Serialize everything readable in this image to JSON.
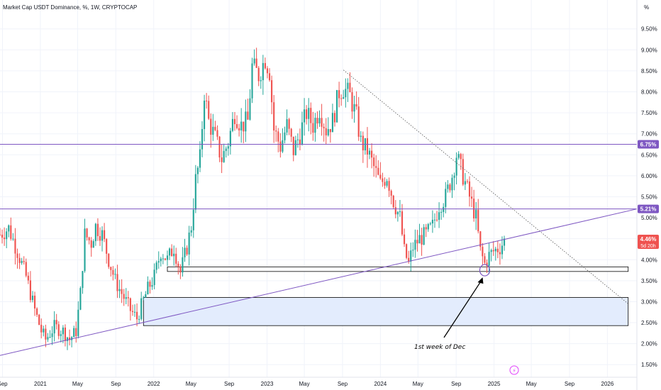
{
  "header": {
    "title": "Market Cap USDT Dominance, %, 1W, CRYPTOCAP",
    "unit": "%"
  },
  "chart_data": {
    "type": "candlestick",
    "title": "Market Cap USDT Dominance, %, 1W, CRYPTOCAP",
    "y_unit": "%",
    "ylim": [
      1.2,
      9.85
    ],
    "x_range": [
      "2020-08-24",
      "2026-04-06"
    ],
    "y_ticks": [
      "9.50%",
      "9.00%",
      "8.50%",
      "8.00%",
      "7.50%",
      "7.00%",
      "6.50%",
      "6.00%",
      "5.50%",
      "5.00%",
      "4.50%",
      "4.00%",
      "3.50%",
      "3.00%",
      "2.50%",
      "2.00%",
      "1.50%"
    ],
    "x_ticks": [
      {
        "date": "2020-09-01",
        "label": "Sep"
      },
      {
        "date": "2021-01-01",
        "label": "2021"
      },
      {
        "date": "2021-05-01",
        "label": "May"
      },
      {
        "date": "2021-09-01",
        "label": "Sep"
      },
      {
        "date": "2022-01-01",
        "label": "2022"
      },
      {
        "date": "2022-05-01",
        "label": "May"
      },
      {
        "date": "2022-09-01",
        "label": "Sep"
      },
      {
        "date": "2023-01-01",
        "label": "2023"
      },
      {
        "date": "2023-05-01",
        "label": "May"
      },
      {
        "date": "2023-09-01",
        "label": "Sep"
      },
      {
        "date": "2024-01-01",
        "label": "2024"
      },
      {
        "date": "2024-05-01",
        "label": "May"
      },
      {
        "date": "2024-09-01",
        "label": "Sep"
      },
      {
        "date": "2025-01-01",
        "label": "2025"
      },
      {
        "date": "2025-05-01",
        "label": "May"
      },
      {
        "date": "2025-09-01",
        "label": "Sep"
      },
      {
        "date": "2026-01-01",
        "label": "2026"
      }
    ],
    "price_path": [
      [
        "2020-08-24",
        4.6
      ],
      [
        "2020-09-21",
        4.75
      ],
      [
        "2020-10-19",
        4.2
      ],
      [
        "2020-11-16",
        3.6
      ],
      [
        "2020-12-14",
        2.8
      ],
      [
        "2021-01-04",
        2.3
      ],
      [
        "2021-01-18",
        2.1
      ],
      [
        "2021-02-15",
        2.4
      ],
      [
        "2021-03-15",
        2.3
      ],
      [
        "2021-04-05",
        2.1
      ],
      [
        "2021-04-26",
        2.3
      ],
      [
        "2021-05-10",
        3.2
      ],
      [
        "2021-05-24",
        4.6
      ],
      [
        "2021-06-14",
        4.4
      ],
      [
        "2021-06-28",
        4.8
      ],
      [
        "2021-07-19",
        4.6
      ],
      [
        "2021-08-09",
        4.0
      ],
      [
        "2021-08-30",
        3.5
      ],
      [
        "2021-09-20",
        3.2
      ],
      [
        "2021-10-18",
        2.8
      ],
      [
        "2021-11-08",
        2.6
      ],
      [
        "2021-11-22",
        2.9
      ],
      [
        "2021-12-13",
        3.3
      ],
      [
        "2022-01-03",
        3.6
      ],
      [
        "2022-01-24",
        4.2
      ],
      [
        "2022-02-14",
        4.0
      ],
      [
        "2022-03-07",
        4.3
      ],
      [
        "2022-03-28",
        3.7
      ],
      [
        "2022-04-18",
        4.3
      ],
      [
        "2022-05-02",
        4.8
      ],
      [
        "2022-05-16",
        5.9
      ],
      [
        "2022-05-30",
        6.4
      ],
      [
        "2022-06-13",
        8.0
      ],
      [
        "2022-06-27",
        7.3
      ],
      [
        "2022-07-18",
        6.9
      ],
      [
        "2022-08-08",
        6.4
      ],
      [
        "2022-08-29",
        6.8
      ],
      [
        "2022-09-19",
        7.5
      ],
      [
        "2022-10-10",
        7.2
      ],
      [
        "2022-10-31",
        7.3
      ],
      [
        "2022-11-14",
        8.6
      ],
      [
        "2022-12-05",
        8.4
      ],
      [
        "2022-12-26",
        8.8
      ],
      [
        "2023-01-09",
        8.5
      ],
      [
        "2023-01-23",
        7.1
      ],
      [
        "2023-02-13",
        6.7
      ],
      [
        "2023-03-06",
        7.2
      ],
      [
        "2023-03-27",
        6.6
      ],
      [
        "2023-04-17",
        7.0
      ],
      [
        "2023-05-08",
        7.5
      ],
      [
        "2023-05-29",
        7.2
      ],
      [
        "2023-06-19",
        7.6
      ],
      [
        "2023-07-10",
        7.1
      ],
      [
        "2023-07-31",
        7.3
      ],
      [
        "2023-08-21",
        8.0
      ],
      [
        "2023-09-04",
        8.1
      ],
      [
        "2023-09-25",
        7.9
      ],
      [
        "2023-10-16",
        7.4
      ],
      [
        "2023-10-30",
        6.8
      ],
      [
        "2023-11-20",
        6.6
      ],
      [
        "2023-12-11",
        6.2
      ],
      [
        "2024-01-01",
        5.8
      ],
      [
        "2024-01-22",
        6.0
      ],
      [
        "2024-02-12",
        5.4
      ],
      [
        "2024-03-04",
        5.0
      ],
      [
        "2024-03-18",
        4.2
      ],
      [
        "2024-04-01",
        3.9
      ],
      [
        "2024-04-15",
        4.3
      ],
      [
        "2024-05-06",
        4.5
      ],
      [
        "2024-05-27",
        4.6
      ],
      [
        "2024-06-17",
        4.8
      ],
      [
        "2024-07-08",
        5.3
      ],
      [
        "2024-07-29",
        5.5
      ],
      [
        "2024-08-19",
        6.0
      ],
      [
        "2024-09-02",
        6.5
      ],
      [
        "2024-09-23",
        6.0
      ],
      [
        "2024-10-14",
        5.5
      ],
      [
        "2024-11-04",
        5.0
      ],
      [
        "2024-11-18",
        4.2
      ],
      [
        "2024-12-02",
        3.9
      ],
      [
        "2024-12-16",
        4.1
      ],
      [
        "2024-12-30",
        4.2
      ],
      [
        "2025-01-20",
        4.3
      ],
      [
        "2025-02-03",
        4.45
      ]
    ],
    "horizontal_levels": [
      {
        "value": 6.75,
        "label": "6.75%",
        "color": "#7e57c2"
      },
      {
        "value": 5.21,
        "label": "5.21%",
        "color": "#7e57c2"
      }
    ],
    "current_price": {
      "label": "4.46%",
      "countdown": "5d 20h",
      "color": "#ef5350"
    },
    "support_zone": {
      "from": "2022-02-14",
      "to": "2026-03-09",
      "y_low": 3.72,
      "y_high": 3.83
    },
    "demand_zone": {
      "from": "2021-11-29",
      "to": "2026-03-09",
      "y_low": 2.43,
      "y_high": 3.1,
      "fill": "#e3ecfd"
    },
    "rising_trendline": {
      "points": [
        [
          "2020-08-24",
          1.72
        ],
        [
          "2026-04-06",
          5.21
        ]
      ],
      "color": "#7e57c2"
    },
    "falling_trendline": {
      "points": [
        [
          "2023-09-04",
          8.52
        ],
        [
          "2026-03-09",
          2.95
        ]
      ],
      "color": "#555555",
      "style": "dotted"
    },
    "annotation": {
      "text": "1st week of Dec",
      "target": [
        "2024-12-02",
        3.75
      ]
    },
    "colors": {
      "up": "#26a69a",
      "down": "#ef5350",
      "grid": "#f0f3fa",
      "level": "#7e57c2",
      "line": "#000000"
    }
  }
}
